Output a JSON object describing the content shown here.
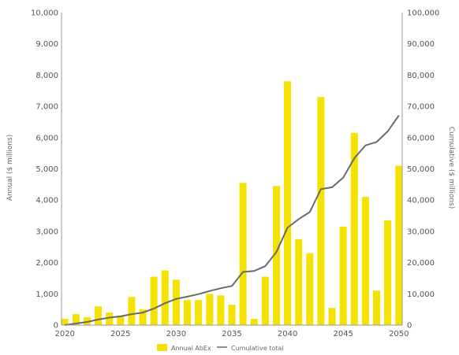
{
  "chart_data": {
    "type": "bar",
    "ylabel": "Annual ($ millions)",
    "y2label": "Cumulative ($ millions)",
    "ylim": [
      0,
      10000
    ],
    "y2lim": [
      0,
      100000
    ],
    "y_ticks": [
      "0",
      "1,000",
      "2,000",
      "3,000",
      "4,000",
      "5,000",
      "6,000",
      "7,000",
      "8,000",
      "9,000",
      "10,000"
    ],
    "y2_ticks": [
      "0",
      "10,000",
      "20,000",
      "30,000",
      "40,000",
      "50,000",
      "60,000",
      "70,000",
      "80,000",
      "90,000",
      "100,000"
    ],
    "x_ticks": [
      2020,
      2025,
      2030,
      2035,
      2040,
      2045,
      2050
    ],
    "x_tick_labels": [
      "2020",
      "2025",
      "2030",
      "2035",
      "2040",
      "2045",
      "2050"
    ],
    "xlim": [
      2019.7,
      2050.3
    ],
    "categories": [
      2020,
      2021,
      2022,
      2023,
      2024,
      2025,
      2026,
      2027,
      2028,
      2029,
      2030,
      2031,
      2032,
      2033,
      2034,
      2035,
      2036,
      2037,
      2038,
      2039,
      2040,
      2041,
      2042,
      2043,
      2044,
      2045,
      2046,
      2047,
      2048,
      2049,
      2050
    ],
    "series": [
      {
        "name": "Annual AbEx",
        "type": "bar",
        "axis": "left",
        "values": [
          200,
          350,
          250,
          600,
          400,
          300,
          900,
          500,
          1550,
          1750,
          1450,
          800,
          800,
          1000,
          950,
          650,
          4550,
          200,
          1550,
          4450,
          7800,
          2750,
          2300,
          7300,
          550,
          3150,
          6150,
          4100,
          1100,
          3350,
          5100
        ]
      },
      {
        "name": "Cumulative total",
        "type": "line",
        "axis": "right",
        "values": [
          0,
          500,
          1000,
          1800,
          2400,
          2800,
          3500,
          4000,
          5300,
          7000,
          8400,
          9100,
          9900,
          10900,
          11800,
          12500,
          17000,
          17300,
          18900,
          23400,
          31200,
          33900,
          36200,
          43500,
          44100,
          47200,
          53400,
          57500,
          58600,
          62000,
          67100
        ]
      }
    ],
    "colors": {
      "bar": "#f4e200",
      "line": "#6a6a6a",
      "axis": "#999999"
    },
    "legend_position": "bottom-center",
    "grid": false
  }
}
